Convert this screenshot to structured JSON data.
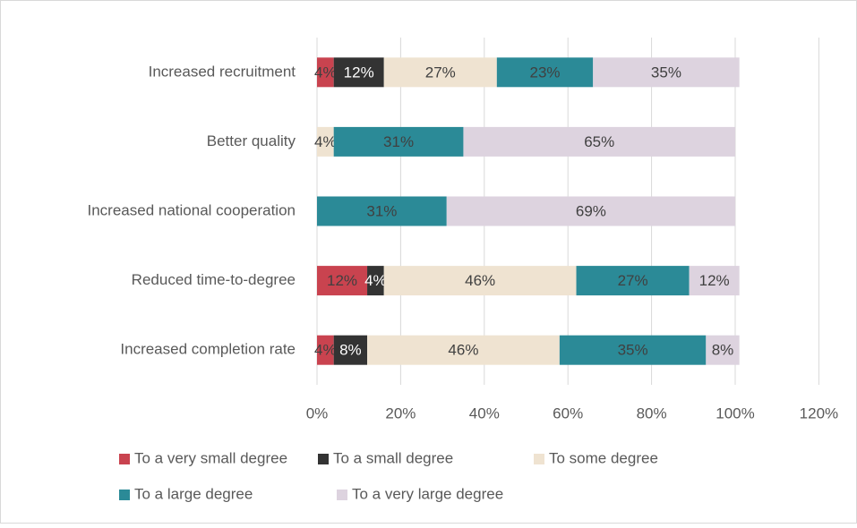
{
  "chart_data": {
    "type": "stacked_barh",
    "categories": [
      "Increased recruitment",
      "Better quality",
      "Increased national cooperation",
      "Reduced time-to-degree",
      "Increased completion rate"
    ],
    "series": [
      {
        "name": "To a very small degree",
        "color": "#c9434f",
        "values": [
          4,
          null,
          null,
          12,
          4
        ],
        "value_labels": [
          "4%",
          null,
          null,
          "12%",
          "4%"
        ]
      },
      {
        "name": "To a small degree",
        "color": "#333333",
        "values": [
          12,
          null,
          null,
          4,
          8
        ],
        "value_labels": [
          "12%",
          null,
          null,
          "4%",
          "8%"
        ]
      },
      {
        "name": "To some degree",
        "color": "#efe3d1",
        "values": [
          27,
          4,
          null,
          46,
          46
        ],
        "value_labels": [
          "27%",
          "4%",
          null,
          "46%",
          "46%"
        ]
      },
      {
        "name": "To a large degree",
        "color": "#2b8a97",
        "values": [
          23,
          31,
          31,
          27,
          35
        ],
        "value_labels": [
          "23%",
          "31%",
          "31%",
          "27%",
          "35%"
        ]
      },
      {
        "name": "To a very large degree",
        "color": "#ddd3df",
        "values": [
          35,
          65,
          69,
          12,
          8
        ],
        "value_labels": [
          "35%",
          "65%",
          "69%",
          "12%",
          "8%"
        ]
      }
    ],
    "xlim": [
      0,
      120
    ],
    "xticks": [
      {
        "value": 0,
        "label": "0%"
      },
      {
        "value": 20,
        "label": "20%"
      },
      {
        "value": 40,
        "label": "40%"
      },
      {
        "value": 60,
        "label": "60%"
      },
      {
        "value": 80,
        "label": "80%"
      },
      {
        "value": 100,
        "label": "100%"
      },
      {
        "value": 120,
        "label": "120%"
      }
    ],
    "grid": true,
    "legend": "bottom"
  }
}
